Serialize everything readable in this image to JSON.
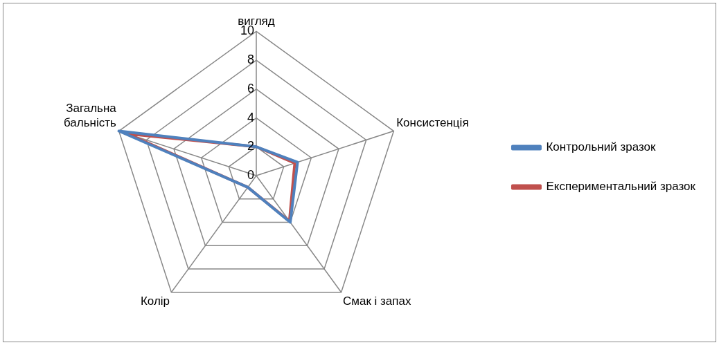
{
  "chart_data": {
    "type": "radar",
    "categories": [
      "вигляд",
      "Консистенція",
      "Смак і запах",
      "Колір",
      "Загальна бальність"
    ],
    "series": [
      {
        "name": "Контрольний зразок",
        "color": "#4f81bd",
        "values": [
          2,
          3,
          4,
          1,
          10
        ]
      },
      {
        "name": "Експериментальний зразок",
        "color": "#c0504d",
        "values": [
          2,
          2.8,
          3.9,
          1,
          9.4
        ]
      }
    ],
    "ylim": [
      0,
      10
    ],
    "yticks": [
      0,
      2,
      4,
      6,
      8,
      10
    ],
    "grid": true,
    "legend": "right",
    "marker": "none",
    "line_style": "solid"
  }
}
